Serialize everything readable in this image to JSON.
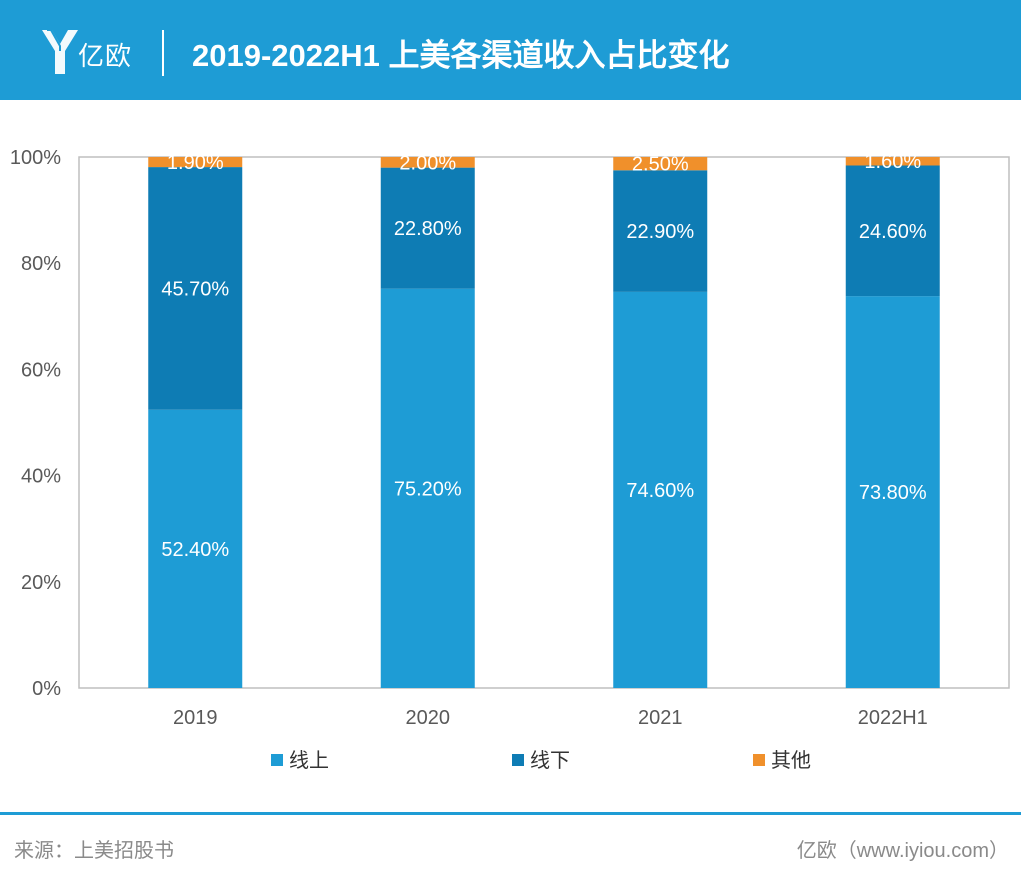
{
  "header": {
    "logo_text": "亿欧",
    "title": "2019-2022H1 上美各渠道收入占比变化"
  },
  "footer": {
    "source": "来源：上美招股书",
    "credit": "亿欧（www.iyiou.com）"
  },
  "colors": {
    "header_bg": "#1e9cd5",
    "online": "#1e9cd5",
    "offline": "#0e7cb4",
    "other": "#f0902b",
    "axis": "#bfbfbf",
    "axis_text": "#595959",
    "label_text": "#ffffff"
  },
  "icons": {
    "logo": "yiou-logo-icon"
  },
  "chart_data": {
    "type": "bar",
    "stacked": true,
    "categories": [
      "2019",
      "2020",
      "2021",
      "2022H1"
    ],
    "series": [
      {
        "name": "线上",
        "values": [
          52.4,
          75.2,
          74.6,
          73.8
        ],
        "labels": [
          "52.40%",
          "75.20%",
          "74.60%",
          "73.80%"
        ]
      },
      {
        "name": "线下",
        "values": [
          45.7,
          22.8,
          22.9,
          24.6
        ],
        "labels": [
          "45.70%",
          "22.80%",
          "22.90%",
          "24.60%"
        ]
      },
      {
        "name": "其他",
        "values": [
          1.9,
          2.0,
          2.5,
          1.6
        ],
        "labels": [
          "1.90%",
          "2.00%",
          "2.50%",
          "1.60%"
        ]
      }
    ],
    "y_ticks": [
      "0%",
      "20%",
      "40%",
      "60%",
      "80%",
      "100%"
    ],
    "ylim": [
      0,
      100
    ],
    "grid": false,
    "legend_position": "bottom"
  }
}
